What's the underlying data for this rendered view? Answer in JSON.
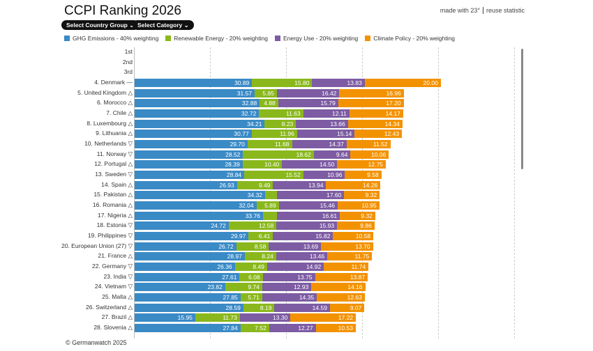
{
  "header": {
    "title": "CCPI Ranking 2026",
    "made_with": "made with 23°",
    "reuse": "reuse statistic"
  },
  "filters": {
    "country_group": "Select Country Group ⌄",
    "category": "Select Category ⌄"
  },
  "footer": {
    "copyright": "© Germanwatch 2025"
  },
  "chart_data": {
    "type": "bar",
    "orientation": "horizontal",
    "stacked": true,
    "xlim": [
      0,
      100
    ],
    "grid": true,
    "legend": "top",
    "series": [
      {
        "name": "GHG Emissions - 40% weighting",
        "color": "#3a8ac6"
      },
      {
        "name": "Renewable Energy - 20% weighting",
        "color": "#8ab81c"
      },
      {
        "name": "Energy Use - 20% weighting",
        "color": "#7d5ca3"
      },
      {
        "name": "Climate Policy - 20% weighting",
        "color": "#f39200"
      }
    ],
    "categories": [
      "1st",
      "2nd",
      "3rd",
      "4. Denmark —",
      "5. United Kingdom △",
      "6. Morocco △",
      "7. Chile △",
      "8. Luxembourg △",
      "9. Lithuania △",
      "10. Netherlands ▽",
      "11. Norway ▽",
      "12. Portugal △",
      "13. Sweden ▽",
      "14. Spain △",
      "15. Pakistan △",
      "16. Romania △",
      "17. Nigeria △",
      "18. Estonia ▽",
      "19. Philippines ▽",
      "20. European Union (27) ▽",
      "21. France △",
      "22. Germany ▽",
      "23. India ▽",
      "24. Vietnam ▽",
      "25. Malta △",
      "26. Switzerland △",
      "27. Brazil △",
      "28. Slovenia △"
    ],
    "values": [
      null,
      null,
      null,
      [
        30.89,
        15.8,
        13.83,
        20.0
      ],
      [
        31.57,
        5.85,
        16.42,
        16.96
      ],
      [
        32.88,
        4.88,
        15.79,
        17.2
      ],
      [
        32.72,
        11.63,
        12.11,
        14.17
      ],
      [
        34.21,
        8.23,
        13.66,
        14.34
      ],
      [
        30.77,
        11.96,
        15.14,
        12.43
      ],
      [
        29.7,
        11.68,
        14.37,
        11.52
      ],
      [
        28.52,
        18.62,
        9.64,
        10.06
      ],
      [
        28.39,
        10.4,
        14.5,
        12.75
      ],
      [
        28.84,
        15.52,
        10.96,
        9.58
      ],
      [
        26.93,
        9.49,
        13.94,
        14.26
      ],
      [
        34.32,
        3.2,
        17.6,
        9.32
      ],
      [
        32.04,
        5.89,
        15.46,
        10.95
      ],
      [
        33.76,
        3.6,
        16.61,
        9.32
      ],
      [
        24.72,
        12.58,
        15.93,
        9.86
      ],
      [
        29.97,
        6.41,
        15.82,
        10.58
      ],
      [
        26.72,
        8.58,
        13.69,
        13.7
      ],
      [
        28.97,
        8.24,
        13.46,
        11.75
      ],
      [
        26.36,
        8.49,
        14.92,
        11.74
      ],
      [
        27.61,
        6.08,
        13.75,
        13.87
      ],
      [
        23.82,
        9.74,
        12.93,
        14.16
      ],
      [
        27.85,
        5.71,
        14.35,
        12.63
      ],
      [
        28.59,
        8.19,
        14.59,
        9.07
      ],
      [
        15.95,
        11.73,
        13.3,
        17.22
      ],
      [
        27.84,
        7.52,
        12.27,
        10.53
      ]
    ],
    "hidden_labels": [
      [
        14,
        1
      ],
      [
        16,
        1
      ]
    ]
  }
}
